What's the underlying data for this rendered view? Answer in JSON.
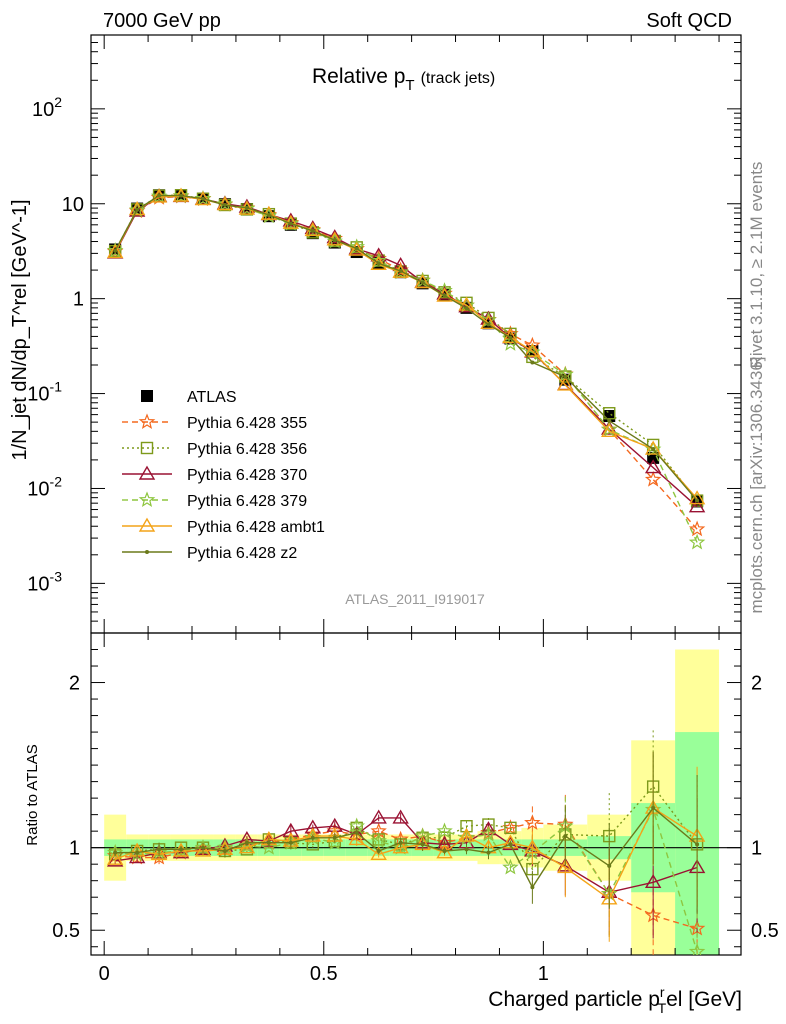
{
  "header": {
    "left": "7000 GeV pp",
    "right": "Soft QCD"
  },
  "sidebar": {
    "rivet": "Rivet 3.1.10, ≥ 2.1M events",
    "mcplots": "mcplots.cern.ch [arXiv:1306.3436]"
  },
  "chart_data": {
    "type": "line",
    "title": "Relative p_T (track jets)",
    "title_main": "Relative p",
    "title_sub": "T",
    "title_note": "(track jets)",
    "analysis_id": "ATLAS_2011_I919017",
    "xlabel": "Charged particle p_T^rel [GeV]",
    "xlabel_main": "Charged particle p",
    "xlabel_sup": "r",
    "xlabel_sub": "T",
    "xlabel_tail": "el [GeV]",
    "ylabel_main": "1/N_jet dN/dp_T^rel [GeV^-1]",
    "ylabel_ratio": "Ratio to ATLAS",
    "xlim": [
      -0.03,
      1.45
    ],
    "ylim_main": [
      0.0003,
      600
    ],
    "ylim_ratio": [
      0.35,
      2.3
    ],
    "yscale_main": "log",
    "legend_position": "left-lower",
    "x_ticks": [
      "0",
      "0.5",
      "1"
    ],
    "y_ticks_main": [
      "10^-3",
      "10^-2",
      "10^-1",
      "1",
      "10",
      "10^2"
    ],
    "y_ticks_ratio": [
      "0.5",
      "1",
      "2"
    ],
    "x": [
      0.025,
      0.075,
      0.125,
      0.175,
      0.225,
      0.275,
      0.325,
      0.375,
      0.425,
      0.475,
      0.525,
      0.575,
      0.625,
      0.675,
      0.725,
      0.775,
      0.825,
      0.875,
      0.925,
      0.975,
      1.05,
      1.15,
      1.25,
      1.35
    ],
    "bin_edges": [
      0,
      0.05,
      0.1,
      0.15,
      0.2,
      0.25,
      0.3,
      0.35,
      0.4,
      0.45,
      0.5,
      0.55,
      0.6,
      0.65,
      0.7,
      0.75,
      0.8,
      0.85,
      0.9,
      0.95,
      1.0,
      1.1,
      1.2,
      1.3,
      1.4
    ],
    "data": {
      "name": "ATLAS",
      "values": [
        3.3,
        8.9,
        12.3,
        12.3,
        11.3,
        9.9,
        8.8,
        7.4,
        6.0,
        4.9,
        3.9,
        3.1,
        2.4,
        1.9,
        1.45,
        1.1,
        0.8,
        0.55,
        0.38,
        0.28,
        0.14,
        0.058,
        0.021,
        0.0073
      ],
      "ratio_band_inner": [
        0.05,
        0.05,
        0.05,
        0.05,
        0.05,
        0.05,
        0.05,
        0.05,
        0.05,
        0.05,
        0.05,
        0.05,
        0.05,
        0.05,
        0.05,
        0.05,
        0.05,
        0.05,
        0.05,
        0.05,
        0.05,
        0.07,
        0.27,
        0.7
      ],
      "ratio_band_outer": [
        0.2,
        0.08,
        0.08,
        0.08,
        0.08,
        0.08,
        0.08,
        0.08,
        0.08,
        0.08,
        0.08,
        0.08,
        0.08,
        0.08,
        0.08,
        0.08,
        0.08,
        0.1,
        0.1,
        0.12,
        0.14,
        0.2,
        0.65,
        1.2
      ],
      "color": "#000000"
    },
    "series": [
      {
        "name": "Pythia 6.428 355",
        "color": "#f4681d",
        "dash": "6,4",
        "marker": "star",
        "ratio": [
          0.95,
          0.94,
          0.94,
          0.97,
          0.99,
          0.99,
          1.02,
          1.03,
          1.05,
          1.08,
          1.1,
          1.08,
          1.1,
          1.05,
          1.07,
          1.03,
          1.06,
          1.09,
          1.12,
          1.15,
          1.14,
          0.72,
          0.59,
          0.51
        ]
      },
      {
        "name": "Pythia 6.428 356",
        "color": "#7d9a1b",
        "dash": "2,3",
        "marker": "square",
        "ratio": [
          0.96,
          0.98,
          0.99,
          1.0,
          1.0,
          0.98,
          0.99,
          1.05,
          1.03,
          1.02,
          1.04,
          1.12,
          1.05,
          1.02,
          1.06,
          1.06,
          1.13,
          1.14,
          1.12,
          0.87,
          1.08,
          1.07,
          1.37,
          1.02
        ]
      },
      {
        "name": "Pythia 6.428 370",
        "color": "#9a1233",
        "dash": "",
        "marker": "triangle",
        "ratio": [
          0.92,
          0.94,
          0.97,
          0.97,
          0.99,
          1.01,
          1.05,
          1.04,
          1.1,
          1.12,
          1.13,
          1.08,
          1.18,
          1.18,
          1.03,
          1.02,
          1.03,
          1.11,
          1.02,
          0.98,
          0.89,
          0.73,
          0.79,
          0.88
        ]
      },
      {
        "name": "Pythia 6.428 379",
        "color": "#8ec63f",
        "dash": "6,4",
        "marker": "star",
        "ratio": [
          0.97,
          0.96,
          0.97,
          0.98,
          1.0,
          1.0,
          1.01,
          1.0,
          1.03,
          1.06,
          1.03,
          1.13,
          1.04,
          1.0,
          1.07,
          1.1,
          1.06,
          1.08,
          0.88,
          0.97,
          1.13,
          0.72,
          1.23,
          0.37
        ]
      },
      {
        "name": "Pythia 6.428 ambt1",
        "color": "#f4a418",
        "dash": "",
        "marker": "triangle",
        "ratio": [
          0.93,
          0.98,
          0.96,
          0.98,
          0.98,
          0.99,
          1.0,
          1.05,
          1.04,
          1.07,
          1.07,
          1.05,
          0.96,
          1.0,
          1.02,
          0.97,
          1.07,
          1.0,
          1.03,
          1.0,
          0.88,
          0.69,
          1.24,
          1.07
        ]
      },
      {
        "name": "Pythia 6.428 z2",
        "color": "#6b7a1a",
        "dash": "",
        "marker": "dot",
        "ratio": [
          0.97,
          0.97,
          0.99,
          0.99,
          1.0,
          0.98,
          1.03,
          1.03,
          1.03,
          1.06,
          1.06,
          1.09,
          0.98,
          1.03,
          1.02,
          0.98,
          0.99,
          0.97,
          1.02,
          0.76,
          1.07,
          0.89,
          1.24,
          1.02
        ]
      }
    ]
  }
}
